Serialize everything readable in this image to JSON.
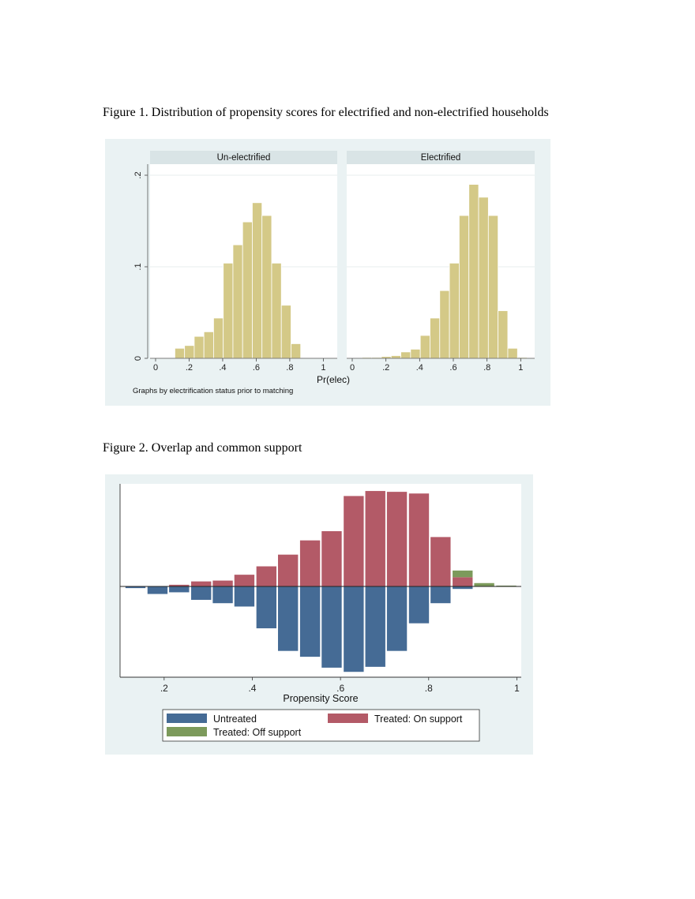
{
  "captions": {
    "fig1": "Figure 1. Distribution of propensity scores for electrified and non-electrified households",
    "fig2": "Figure 2. Overlap and common support"
  },
  "colors": {
    "panel_bg": "#eaf2f3",
    "plot_bg": "#ffffff",
    "strip_bg": "#d9e4e6",
    "hist_fill": "#d4c987",
    "hist_stroke": "#ffffff",
    "grid": "#e7ecec",
    "untreated": "#456b95",
    "treated_on": "#b35a67",
    "treated_off": "#7c9a5b"
  },
  "chart_data": [
    {
      "type": "bar",
      "subtype": "histogram-by-panel",
      "xlabel": "Pr(elec)",
      "ylabel": "",
      "note": "Graphs by electrification status prior to matching",
      "xlim": [
        0,
        1.05
      ],
      "ylim": [
        0,
        0.2
      ],
      "xticks": [
        0,
        0.2,
        0.4,
        0.6,
        0.8,
        1
      ],
      "xtick_labels": [
        "0",
        ".2",
        ".4",
        ".6",
        ".8",
        "1"
      ],
      "yticks": [
        0,
        0.1,
        0.2
      ],
      "ytick_labels": [
        "0",
        ".1",
        ".2"
      ],
      "grid": true,
      "bin_width": 0.0577,
      "panels": [
        {
          "title": "Un-electrified",
          "bin_start": 0.115,
          "values": [
            0.011,
            0.014,
            0.024,
            0.029,
            0.044,
            0.104,
            0.124,
            0.149,
            0.17,
            0.156,
            0.104,
            0.058,
            0.016
          ]
        },
        {
          "title": "Electrified",
          "bin_start": 0.0,
          "values": [
            0.0,
            0.001,
            0.001,
            0.002,
            0.003,
            0.007,
            0.01,
            0.025,
            0.044,
            0.074,
            0.104,
            0.156,
            0.19,
            0.176,
            0.156,
            0.052,
            0.011,
            0.001
          ]
        }
      ]
    },
    {
      "type": "bar",
      "subtype": "mirrored-histogram",
      "xlabel": "Propensity Score",
      "ylabel": "",
      "xlim": [
        0.1,
        1.01
      ],
      "xticks": [
        0.2,
        0.4,
        0.6,
        0.8,
        1
      ],
      "xtick_labels": [
        ".2",
        ".4",
        ".6",
        ".8",
        "1"
      ],
      "ylim": [
        -0.105,
        0.115
      ],
      "bin_width": 0.0494,
      "x_centers": [
        0.135,
        0.185,
        0.234,
        0.284,
        0.333,
        0.382,
        0.432,
        0.481,
        0.531,
        0.58,
        0.63,
        0.679,
        0.728,
        0.778,
        0.827,
        0.877,
        0.926,
        0.976
      ],
      "series": [
        {
          "name": "Untreated",
          "color_key": "untreated",
          "direction": "down",
          "values": [
            0.002,
            0.009,
            0.007,
            0.016,
            0.02,
            0.024,
            0.05,
            0.077,
            0.084,
            0.097,
            0.102,
            0.096,
            0.077,
            0.044,
            0.02,
            0.003,
            0.0,
            0.0
          ]
        },
        {
          "name": "Treated: On support",
          "color_key": "treated_on",
          "direction": "up",
          "values": [
            0.0,
            0.0,
            0.002,
            0.006,
            0.007,
            0.014,
            0.024,
            0.038,
            0.055,
            0.066,
            0.108,
            0.114,
            0.113,
            0.111,
            0.059,
            0.011,
            0.0,
            0.0
          ]
        },
        {
          "name": "Treated: Off support",
          "color_key": "treated_off",
          "direction": "up",
          "values": [
            0.0,
            0.0,
            0.0,
            0.0,
            0.0,
            0.0,
            0.0,
            0.0,
            0.0,
            0.0,
            0.0,
            0.0,
            0.0,
            0.0,
            0.0,
            0.008,
            0.004,
            0.001
          ]
        }
      ],
      "legend": {
        "placement": "bottom",
        "entries": [
          "Untreated",
          "Treated: On support",
          "Treated: Off support"
        ]
      }
    }
  ]
}
